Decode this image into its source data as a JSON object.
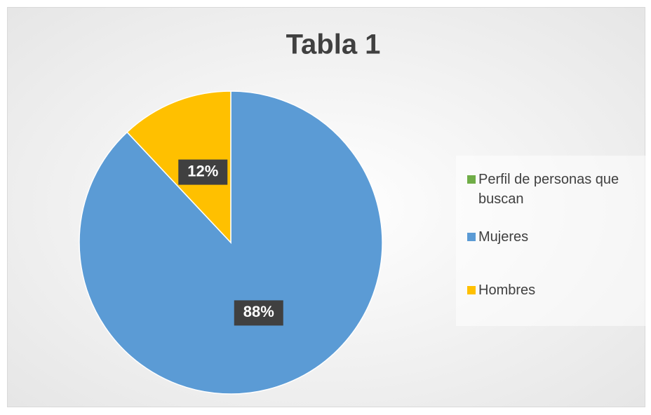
{
  "chart_data": {
    "type": "pie",
    "title": "Tabla 1",
    "categories": [
      "Perfil de personas que buscan",
      "Mujeres",
      "Hombres"
    ],
    "values": [
      0,
      88,
      12
    ],
    "colors": [
      "#70ad47",
      "#5b9bd5",
      "#ffc000"
    ],
    "value_labels": [
      null,
      "88%",
      "12%"
    ],
    "legend": "right"
  }
}
